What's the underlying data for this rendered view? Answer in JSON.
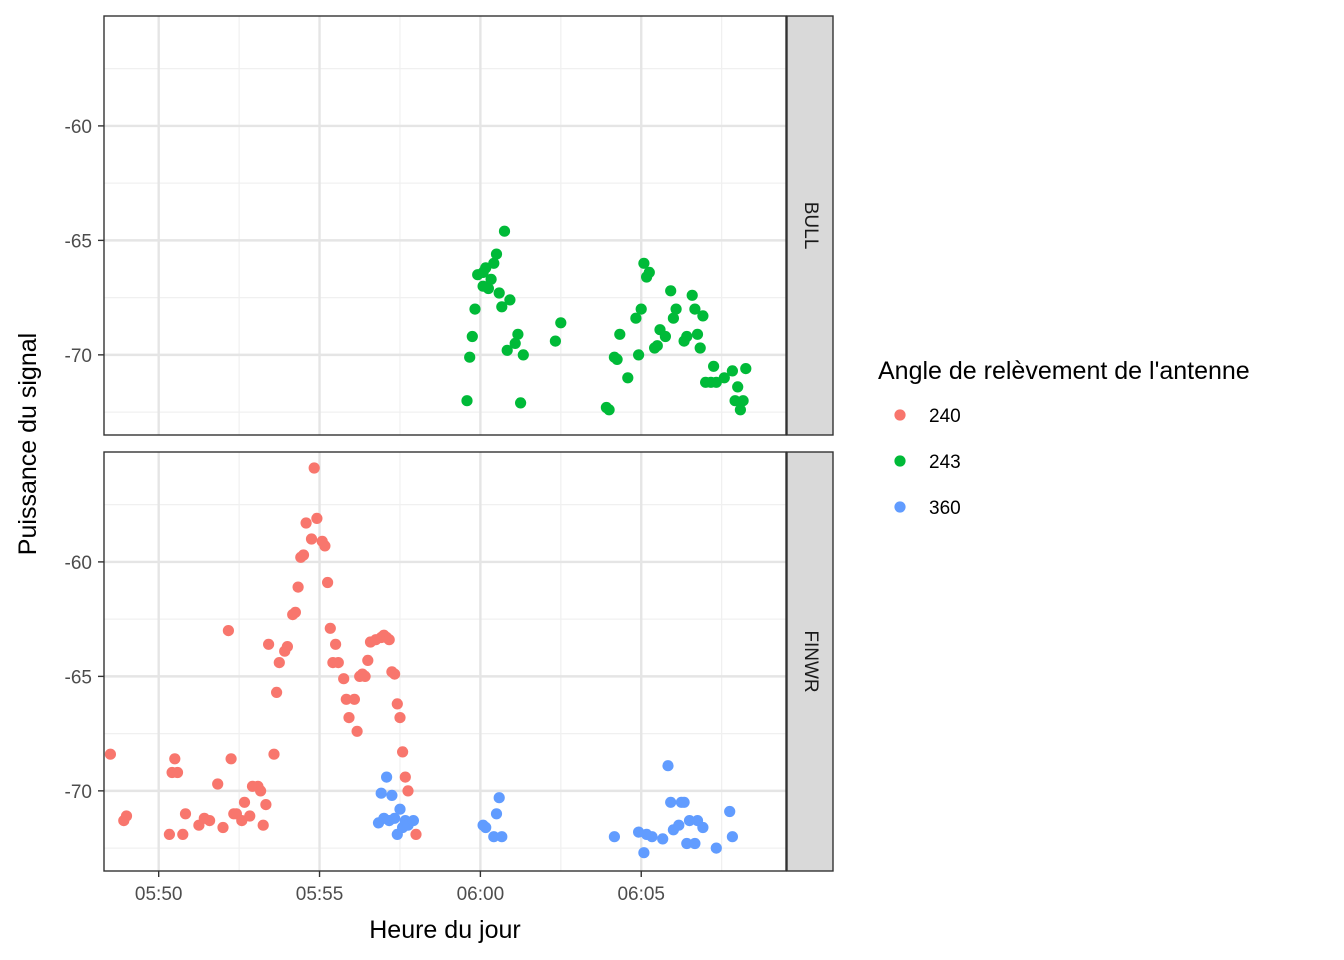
{
  "chart_data": {
    "type": "scatter",
    "xlabel": "Heure du jour",
    "ylabel": "Puissance du signal",
    "x_ticks": [
      "05:50",
      "05:55",
      "06:00",
      "06:05"
    ],
    "x_range_minutes": [
      348.3,
      369.5
    ],
    "grid": true,
    "legend": {
      "title": "Angle de relèvement de l'antenne",
      "placement": "right",
      "entries": [
        {
          "label": "240",
          "color": "#F8766D"
        },
        {
          "label": "243",
          "color": "#00BA38"
        },
        {
          "label": "360",
          "color": "#619CFF"
        }
      ]
    },
    "panels": [
      {
        "name": "BULL",
        "y_ticks": [
          -60,
          -65,
          -70
        ],
        "ylim": [
          -73.5,
          -55.2
        ],
        "series": [
          {
            "name": "243",
            "color": "#00BA38",
            "points": [
              [
                "05:59:35",
                -72.0
              ],
              [
                "05:59:40",
                -70.1
              ],
              [
                "05:59:45",
                -69.2
              ],
              [
                "05:59:50",
                -68.0
              ],
              [
                "05:59:55",
                -66.5
              ],
              [
                "06:00:05",
                -66.4
              ],
              [
                "06:00:10",
                -66.2
              ],
              [
                "06:00:05",
                -67.0
              ],
              [
                "06:00:15",
                -67.1
              ],
              [
                "06:00:20",
                -66.7
              ],
              [
                "06:00:25",
                -66.0
              ],
              [
                "06:00:30",
                -65.6
              ],
              [
                "06:00:35",
                -67.3
              ],
              [
                "06:00:45",
                -64.6
              ],
              [
                "06:00:40",
                -67.9
              ],
              [
                "06:00:55",
                -67.6
              ],
              [
                "06:01:10",
                -69.1
              ],
              [
                "06:01:05",
                -69.5
              ],
              [
                "06:00:50",
                -69.8
              ],
              [
                "06:01:20",
                -70.0
              ],
              [
                "06:01:15",
                -72.1
              ],
              [
                "06:02:20",
                -69.4
              ],
              [
                "06:02:30",
                -68.6
              ],
              [
                "06:03:55",
                -72.3
              ],
              [
                "06:04:00",
                -72.4
              ],
              [
                "06:04:10",
                -70.1
              ],
              [
                "06:04:15",
                -70.2
              ],
              [
                "06:04:20",
                -69.1
              ],
              [
                "06:04:35",
                -71.0
              ],
              [
                "06:04:50",
                -68.4
              ],
              [
                "06:04:55",
                -70.0
              ],
              [
                "06:05:00",
                -68.0
              ],
              [
                "06:05:05",
                -66.0
              ],
              [
                "06:05:10",
                -66.6
              ],
              [
                "06:05:15",
                -66.4
              ],
              [
                "06:05:25",
                -69.7
              ],
              [
                "06:05:30",
                -69.6
              ],
              [
                "06:05:35",
                -68.9
              ],
              [
                "06:05:45",
                -69.2
              ],
              [
                "06:05:55",
                -67.2
              ],
              [
                "06:06:00",
                -68.4
              ],
              [
                "06:06:05",
                -68.0
              ],
              [
                "06:06:20",
                -69.4
              ],
              [
                "06:06:25",
                -69.2
              ],
              [
                "06:06:35",
                -67.4
              ],
              [
                "06:06:40",
                -68.0
              ],
              [
                "06:06:45",
                -69.1
              ],
              [
                "06:06:50",
                -69.7
              ],
              [
                "06:06:55",
                -68.3
              ],
              [
                "06:07:00",
                -71.2
              ],
              [
                "06:07:10",
                -71.2
              ],
              [
                "06:07:15",
                -70.5
              ],
              [
                "06:07:20",
                -71.2
              ],
              [
                "06:07:35",
                -71.0
              ],
              [
                "06:07:50",
                -70.7
              ],
              [
                "06:07:55",
                -72.0
              ],
              [
                "06:08:00",
                -71.4
              ],
              [
                "06:08:05",
                -72.4
              ],
              [
                "06:08:10",
                -72.0
              ],
              [
                "06:08:15",
                -70.6
              ]
            ]
          }
        ]
      },
      {
        "name": "FINWR",
        "y_ticks": [
          -60,
          -65,
          -70
        ],
        "ylim": [
          -73.5,
          -55.2
        ],
        "series": [
          {
            "name": "240",
            "color": "#F8766D",
            "points": [
              [
                "05:48:30",
                -68.4
              ],
              [
                "05:48:55",
                -71.3
              ],
              [
                "05:49:00",
                -71.1
              ],
              [
                "05:50:20",
                -71.9
              ],
              [
                "05:50:25",
                -69.2
              ],
              [
                "05:50:30",
                -68.6
              ],
              [
                "05:50:35",
                -69.2
              ],
              [
                "05:50:45",
                -71.9
              ],
              [
                "05:50:50",
                -71.0
              ],
              [
                "05:51:15",
                -71.5
              ],
              [
                "05:51:25",
                -71.2
              ],
              [
                "05:51:35",
                -71.3
              ],
              [
                "05:51:50",
                -69.7
              ],
              [
                "05:52:00",
                -71.6
              ],
              [
                "05:52:10",
                -63.0
              ],
              [
                "05:52:15",
                -68.6
              ],
              [
                "05:52:20",
                -71.0
              ],
              [
                "05:52:25",
                -71.0
              ],
              [
                "05:52:35",
                -71.3
              ],
              [
                "05:52:40",
                -70.5
              ],
              [
                "05:52:50",
                -71.1
              ],
              [
                "05:52:55",
                -69.8
              ],
              [
                "05:53:05",
                -69.8
              ],
              [
                "05:53:10",
                -70.0
              ],
              [
                "05:53:15",
                -71.5
              ],
              [
                "05:53:20",
                -70.6
              ],
              [
                "05:53:25",
                -63.6
              ],
              [
                "05:53:35",
                -68.4
              ],
              [
                "05:53:40",
                -65.7
              ],
              [
                "05:53:45",
                -64.4
              ],
              [
                "05:53:55",
                -63.9
              ],
              [
                "05:54:00",
                -63.7
              ],
              [
                "05:54:10",
                -62.3
              ],
              [
                "05:54:15",
                -62.2
              ],
              [
                "05:54:20",
                -61.1
              ],
              [
                "05:54:25",
                -59.8
              ],
              [
                "05:54:30",
                -59.7
              ],
              [
                "05:54:35",
                -58.3
              ],
              [
                "05:54:45",
                -59.0
              ],
              [
                "05:54:50",
                -55.9
              ],
              [
                "05:54:55",
                -58.1
              ],
              [
                "05:55:05",
                -59.1
              ],
              [
                "05:55:10",
                -59.3
              ],
              [
                "05:55:15",
                -60.9
              ],
              [
                "05:55:20",
                -62.9
              ],
              [
                "05:55:25",
                -64.4
              ],
              [
                "05:55:30",
                -63.6
              ],
              [
                "05:55:35",
                -64.4
              ],
              [
                "05:55:45",
                -65.1
              ],
              [
                "05:55:50",
                -66.0
              ],
              [
                "05:55:55",
                -66.8
              ],
              [
                "05:56:05",
                -66.0
              ],
              [
                "05:56:10",
                -67.4
              ],
              [
                "05:56:15",
                -65.0
              ],
              [
                "05:56:20",
                -64.9
              ],
              [
                "05:56:25",
                -65.0
              ],
              [
                "05:56:30",
                -64.3
              ],
              [
                "05:56:35",
                -63.5
              ],
              [
                "05:56:45",
                -63.4
              ],
              [
                "05:56:55",
                -63.3
              ],
              [
                "05:57:00",
                -63.2
              ],
              [
                "05:57:05",
                -63.3
              ],
              [
                "05:57:10",
                -63.4
              ],
              [
                "05:57:15",
                -64.8
              ],
              [
                "05:57:20",
                -64.9
              ],
              [
                "05:57:25",
                -66.2
              ],
              [
                "05:57:30",
                -66.8
              ],
              [
                "05:57:35",
                -68.3
              ],
              [
                "05:57:40",
                -69.4
              ],
              [
                "05:57:45",
                -70.0
              ],
              [
                "05:58:00",
                -71.9
              ]
            ]
          },
          {
            "name": "360",
            "color": "#619CFF",
            "points": [
              [
                "05:56:50",
                -71.4
              ],
              [
                "05:56:55",
                -70.1
              ],
              [
                "05:57:00",
                -71.2
              ],
              [
                "05:57:05",
                -69.4
              ],
              [
                "05:57:10",
                -71.3
              ],
              [
                "05:57:15",
                -70.2
              ],
              [
                "05:57:20",
                -71.2
              ],
              [
                "05:57:25",
                -71.9
              ],
              [
                "05:57:30",
                -70.8
              ],
              [
                "05:57:35",
                -71.6
              ],
              [
                "05:57:40",
                -71.3
              ],
              [
                "05:57:45",
                -71.5
              ],
              [
                "05:57:55",
                -71.3
              ],
              [
                "06:00:05",
                -71.5
              ],
              [
                "06:00:10",
                -71.6
              ],
              [
                "06:00:25",
                -72.0
              ],
              [
                "06:00:30",
                -71.0
              ],
              [
                "06:00:35",
                -70.3
              ],
              [
                "06:00:40",
                -72.0
              ],
              [
                "06:04:10",
                -72.0
              ],
              [
                "06:04:55",
                -71.8
              ],
              [
                "06:05:05",
                -72.7
              ],
              [
                "06:05:10",
                -71.9
              ],
              [
                "06:05:20",
                -72.0
              ],
              [
                "06:05:40",
                -72.1
              ],
              [
                "06:05:50",
                -68.9
              ],
              [
                "06:05:55",
                -70.5
              ],
              [
                "06:06:00",
                -71.7
              ],
              [
                "06:06:10",
                -71.5
              ],
              [
                "06:06:15",
                -70.5
              ],
              [
                "06:06:20",
                -70.5
              ],
              [
                "06:06:25",
                -72.3
              ],
              [
                "06:06:30",
                -71.3
              ],
              [
                "06:06:40",
                -72.3
              ],
              [
                "06:06:45",
                -71.3
              ],
              [
                "06:06:55",
                -71.6
              ],
              [
                "06:07:20",
                -72.5
              ],
              [
                "06:07:45",
                -70.9
              ],
              [
                "06:07:50",
                -72.0
              ]
            ]
          }
        ]
      }
    ]
  }
}
